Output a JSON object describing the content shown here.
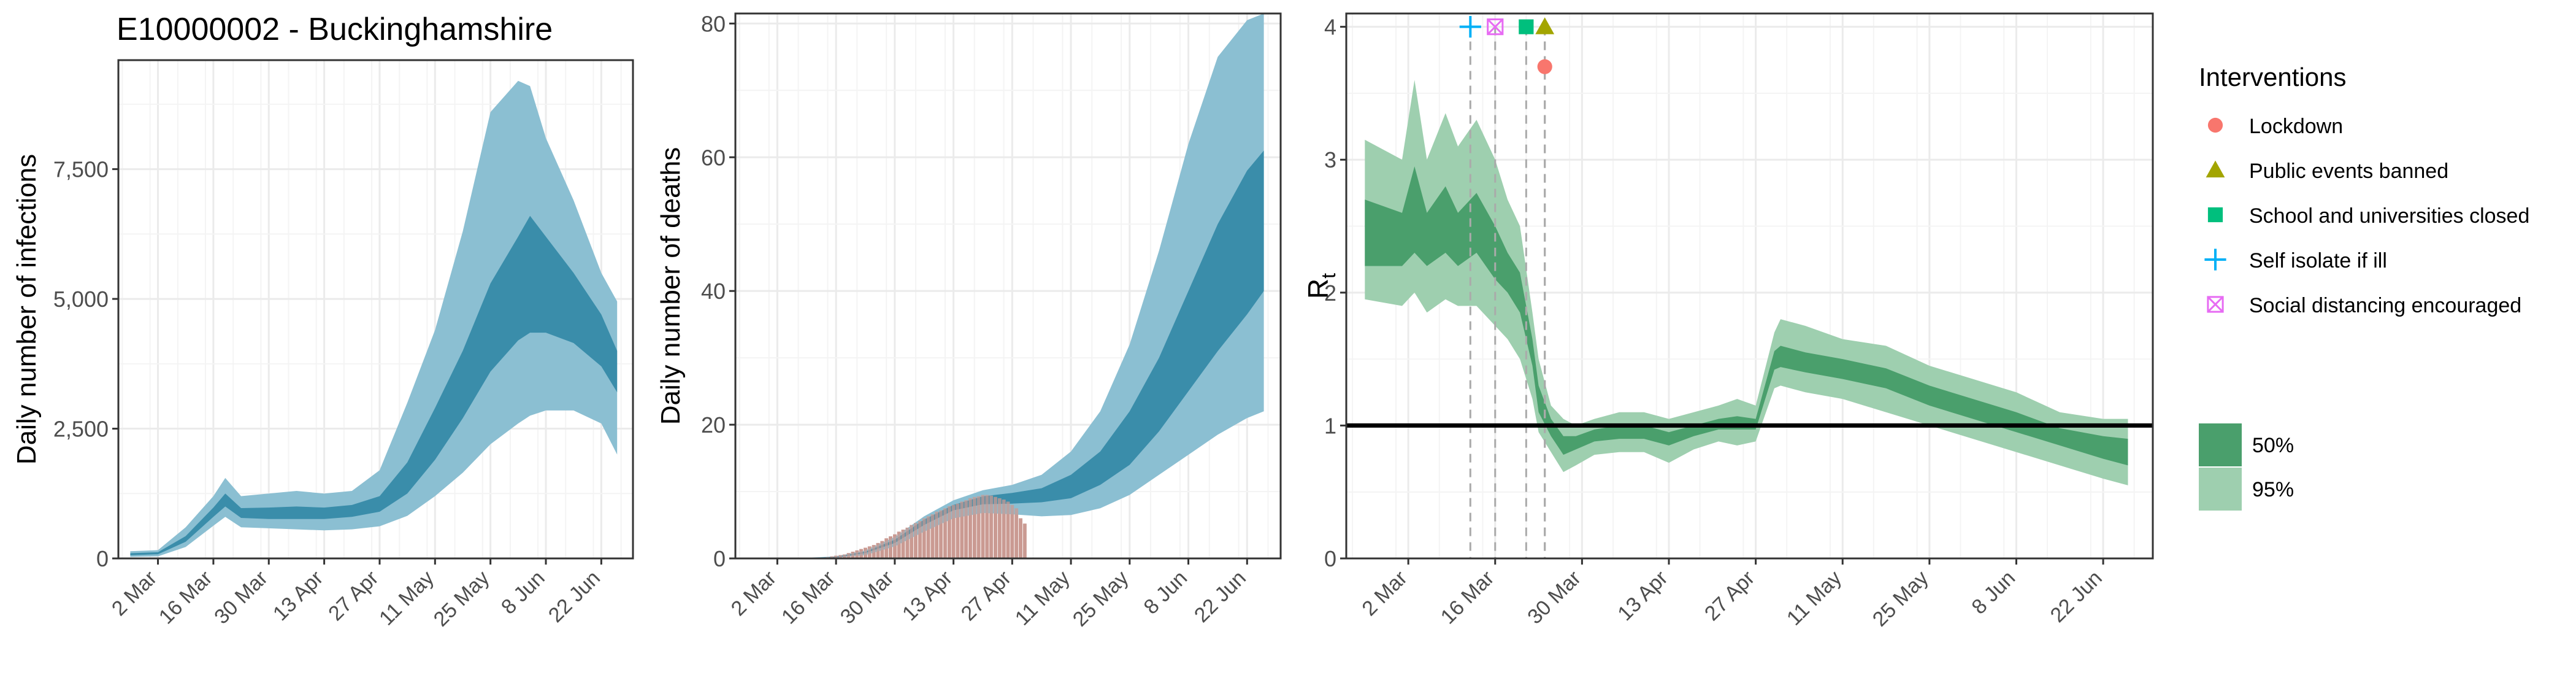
{
  "colors": {
    "band95_blue": "#8bbfd2",
    "band50_blue": "#3a8daa",
    "bars": "#c99a92",
    "band95_green": "#9ecfaf",
    "band50_green": "#4a9f6c",
    "lockdown": "#F8766D",
    "public_events": "#A3A500",
    "school": "#00BF7D",
    "self_isolate": "#00B0F6",
    "social_distancing": "#E76BF3",
    "grid": "#ebebeb",
    "panel_border": "#333333"
  },
  "chart_data": [
    {
      "type": "area",
      "title": "E10000002 - Buckinghamshire",
      "xlabel": "",
      "ylabel": "Daily number of infections",
      "x_ticks": [
        "2 Mar",
        "16 Mar",
        "30 Mar",
        "13 Apr",
        "27 Apr",
        "11 May",
        "25 May",
        "8 Jun",
        "22 Jun"
      ],
      "y_ticks": [
        "0",
        "2,500",
        "5,000",
        "7,500"
      ],
      "ylim": [
        0,
        9600
      ],
      "grid": true,
      "series": [
        {
          "band": "95%",
          "x": [
            "2020-02-24",
            "2020-03-02",
            "2020-03-09",
            "2020-03-16",
            "2020-03-19",
            "2020-03-23",
            "2020-03-30",
            "2020-04-06",
            "2020-04-13",
            "2020-04-20",
            "2020-04-27",
            "2020-05-04",
            "2020-05-11",
            "2020-05-18",
            "2020-05-25",
            "2020-06-01",
            "2020-06-04",
            "2020-06-08",
            "2020-06-15",
            "2020-06-22",
            "2020-06-26"
          ],
          "low": [
            30,
            40,
            220,
            630,
            800,
            600,
            580,
            560,
            540,
            560,
            620,
            820,
            1200,
            1650,
            2200,
            2600,
            2750,
            2850,
            2850,
            2600,
            2000
          ],
          "high": [
            140,
            160,
            600,
            1200,
            1550,
            1200,
            1250,
            1300,
            1250,
            1300,
            1700,
            3000,
            4400,
            6300,
            8600,
            9200,
            9100,
            8100,
            6900,
            5500,
            4950
          ]
        },
        {
          "band": "50%",
          "x": [
            "2020-02-24",
            "2020-03-02",
            "2020-03-09",
            "2020-03-16",
            "2020-03-19",
            "2020-03-23",
            "2020-03-30",
            "2020-04-06",
            "2020-04-13",
            "2020-04-20",
            "2020-04-27",
            "2020-05-04",
            "2020-05-11",
            "2020-05-18",
            "2020-05-25",
            "2020-06-01",
            "2020-06-04",
            "2020-06-08",
            "2020-06-15",
            "2020-06-22",
            "2020-06-26"
          ],
          "low": [
            60,
            80,
            320,
            800,
            1000,
            780,
            760,
            760,
            760,
            800,
            900,
            1250,
            1900,
            2700,
            3600,
            4200,
            4350,
            4350,
            4150,
            3700,
            3200
          ],
          "high": [
            100,
            120,
            430,
            980,
            1250,
            970,
            980,
            1000,
            980,
            1030,
            1200,
            1850,
            2900,
            4000,
            5300,
            6200,
            6600,
            6200,
            5500,
            4700,
            4000
          ]
        }
      ]
    },
    {
      "type": "bar",
      "title": "",
      "xlabel": "",
      "ylabel": "Daily number of deaths",
      "x_ticks": [
        "2 Mar",
        "16 Mar",
        "30 Mar",
        "13 Apr",
        "27 Apr",
        "11 May",
        "25 May",
        "8 Jun",
        "22 Jun"
      ],
      "y_ticks": [
        "0",
        "20",
        "40",
        "60",
        "80"
      ],
      "ylim": [
        0,
        81.5
      ],
      "grid": true,
      "bar_x": [
        "2020-03-14",
        "2020-03-15",
        "2020-03-16",
        "2020-03-17",
        "2020-03-18",
        "2020-03-19",
        "2020-03-20",
        "2020-03-21",
        "2020-03-22",
        "2020-03-23",
        "2020-03-24",
        "2020-03-25",
        "2020-03-26",
        "2020-03-27",
        "2020-03-28",
        "2020-03-29",
        "2020-03-30",
        "2020-03-31",
        "2020-04-01",
        "2020-04-02",
        "2020-04-03",
        "2020-04-04",
        "2020-04-05",
        "2020-04-06",
        "2020-04-07",
        "2020-04-08",
        "2020-04-09",
        "2020-04-10",
        "2020-04-11",
        "2020-04-12",
        "2020-04-13",
        "2020-04-14",
        "2020-04-15",
        "2020-04-16",
        "2020-04-17",
        "2020-04-18",
        "2020-04-19",
        "2020-04-20",
        "2020-04-21",
        "2020-04-22",
        "2020-04-23",
        "2020-04-24",
        "2020-04-25",
        "2020-04-26",
        "2020-04-27",
        "2020-04-28",
        "2020-04-29",
        "2020-04-30"
      ],
      "bar_values": [
        0.2,
        0.3,
        0.4,
        0.5,
        0.6,
        0.8,
        1,
        1.2,
        1.4,
        1.6,
        1.8,
        2,
        2.3,
        2.6,
        3,
        3.3,
        3.6,
        4,
        4.3,
        4.6,
        5,
        5.3,
        5.6,
        6,
        6.3,
        6.6,
        7,
        7.2,
        7.5,
        7.8,
        8,
        8.2,
        8.5,
        8.7,
        9,
        9.2,
        9.3,
        9.5,
        9.5,
        9.4,
        9.2,
        9,
        8.8,
        8.5,
        8,
        7.5,
        6,
        5.2
      ],
      "series": [
        {
          "band": "95%",
          "x": [
            "2020-03-02",
            "2020-03-09",
            "2020-03-16",
            "2020-03-23",
            "2020-03-30",
            "2020-04-06",
            "2020-04-13",
            "2020-04-20",
            "2020-04-27",
            "2020-05-04",
            "2020-05-11",
            "2020-05-18",
            "2020-05-25",
            "2020-06-01",
            "2020-06-08",
            "2020-06-15",
            "2020-06-22",
            "2020-06-26"
          ],
          "low": [
            0,
            0,
            0.1,
            0.5,
            1.8,
            4,
            6,
            6.8,
            6.6,
            6.3,
            6.5,
            7.5,
            9.5,
            12.5,
            15.5,
            18.5,
            21,
            22
          ],
          "high": [
            0,
            0.1,
            0.3,
            1.2,
            3.2,
            6.3,
            8.7,
            10.2,
            11,
            12.5,
            16,
            22,
            32,
            46,
            62,
            75,
            80.5,
            81.5
          ]
        },
        {
          "band": "50%",
          "x": [
            "2020-03-02",
            "2020-03-09",
            "2020-03-16",
            "2020-03-23",
            "2020-03-30",
            "2020-04-06",
            "2020-04-13",
            "2020-04-20",
            "2020-04-27",
            "2020-05-04",
            "2020-05-11",
            "2020-05-18",
            "2020-05-25",
            "2020-06-01",
            "2020-06-08",
            "2020-06-15",
            "2020-06-22",
            "2020-06-26"
          ],
          "low": [
            0,
            0,
            0.15,
            0.8,
            2.3,
            5,
            7.2,
            8.1,
            8.2,
            8.4,
            9,
            11,
            14,
            19,
            25,
            31,
            36.5,
            40
          ],
          "high": [
            0,
            0.05,
            0.25,
            1,
            2.8,
            5.8,
            8,
            9.3,
            9.8,
            10.5,
            12.5,
            16,
            22,
            30,
            40,
            50,
            58,
            61
          ]
        }
      ]
    },
    {
      "type": "area",
      "title": "",
      "xlabel": "",
      "ylabel": "R",
      "ylabel_subscript": "t",
      "x_ticks": [
        "2 Mar",
        "16 Mar",
        "30 Mar",
        "13 Apr",
        "27 Apr",
        "11 May",
        "25 May",
        "8 Jun",
        "22 Jun"
      ],
      "y_ticks": [
        "0",
        "1",
        "2",
        "3",
        "4"
      ],
      "ylim": [
        0,
        4.1
      ],
      "grid": true,
      "reference_line": 1,
      "series": [
        {
          "band": "95%",
          "x": [
            "2020-02-24",
            "2020-03-01",
            "2020-03-03",
            "2020-03-05",
            "2020-03-08",
            "2020-03-10",
            "2020-03-13",
            "2020-03-16",
            "2020-03-18",
            "2020-03-20",
            "2020-03-22",
            "2020-03-23",
            "2020-03-25",
            "2020-03-27",
            "2020-03-29",
            "2020-04-01",
            "2020-04-05",
            "2020-04-09",
            "2020-04-13",
            "2020-04-17",
            "2020-04-21",
            "2020-04-24",
            "2020-04-27",
            "2020-04-30",
            "2020-05-01",
            "2020-05-05",
            "2020-05-11",
            "2020-05-18",
            "2020-05-25",
            "2020-06-01",
            "2020-06-08",
            "2020-06-15",
            "2020-06-22",
            "2020-06-26"
          ],
          "low": [
            1.95,
            1.9,
            2.0,
            1.85,
            1.95,
            1.9,
            1.9,
            1.75,
            1.65,
            1.5,
            1.2,
            0.95,
            0.8,
            0.65,
            0.7,
            0.78,
            0.8,
            0.8,
            0.72,
            0.82,
            0.88,
            0.85,
            0.88,
            1.28,
            1.3,
            1.25,
            1.2,
            1.1,
            1.0,
            0.9,
            0.8,
            0.7,
            0.6,
            0.55
          ],
          "high": [
            3.15,
            3.0,
            3.6,
            3.0,
            3.35,
            3.1,
            3.3,
            3.0,
            2.7,
            2.5,
            1.85,
            1.5,
            1.15,
            1.05,
            1.0,
            1.05,
            1.1,
            1.1,
            1.05,
            1.1,
            1.15,
            1.2,
            1.15,
            1.7,
            1.8,
            1.75,
            1.65,
            1.6,
            1.45,
            1.35,
            1.25,
            1.1,
            1.05,
            1.05
          ]
        },
        {
          "band": "50%",
          "x": [
            "2020-02-24",
            "2020-03-01",
            "2020-03-03",
            "2020-03-05",
            "2020-03-08",
            "2020-03-10",
            "2020-03-13",
            "2020-03-16",
            "2020-03-18",
            "2020-03-20",
            "2020-03-22",
            "2020-03-23",
            "2020-03-25",
            "2020-03-27",
            "2020-03-29",
            "2020-04-01",
            "2020-04-05",
            "2020-04-09",
            "2020-04-13",
            "2020-04-17",
            "2020-04-21",
            "2020-04-24",
            "2020-04-27",
            "2020-04-30",
            "2020-05-01",
            "2020-05-05",
            "2020-05-11",
            "2020-05-18",
            "2020-05-25",
            "2020-06-01",
            "2020-06-08",
            "2020-06-15",
            "2020-06-22",
            "2020-06-26"
          ],
          "low": [
            2.2,
            2.2,
            2.3,
            2.2,
            2.3,
            2.2,
            2.3,
            2.1,
            2.0,
            1.85,
            1.45,
            1.1,
            0.92,
            0.78,
            0.82,
            0.88,
            0.9,
            0.9,
            0.85,
            0.92,
            0.97,
            0.97,
            0.97,
            1.42,
            1.44,
            1.4,
            1.35,
            1.28,
            1.15,
            1.05,
            0.95,
            0.85,
            0.75,
            0.7
          ],
          "high": [
            2.7,
            2.6,
            2.95,
            2.6,
            2.8,
            2.6,
            2.75,
            2.5,
            2.3,
            2.15,
            1.65,
            1.3,
            1.05,
            0.92,
            0.92,
            0.97,
            1.0,
            1.0,
            0.95,
            1.0,
            1.05,
            1.07,
            1.05,
            1.56,
            1.6,
            1.55,
            1.5,
            1.43,
            1.3,
            1.2,
            1.1,
            0.98,
            0.92,
            0.9
          ]
        }
      ],
      "interventions": [
        {
          "label": "Self isolate if ill",
          "date": "2020-03-12",
          "symbol": "plus",
          "color_key": "self_isolate"
        },
        {
          "label": "Social distancing encouraged",
          "date": "2020-03-16",
          "symbol": "boxx",
          "color_key": "social_distancing"
        },
        {
          "label": "School and universities closed",
          "date": "2020-03-21",
          "symbol": "square",
          "color_key": "school"
        },
        {
          "label": "Public events banned",
          "date": "2020-03-24",
          "symbol": "triangle",
          "color_key": "public_events"
        },
        {
          "label": "Lockdown",
          "date": "2020-03-24",
          "symbol": "circle",
          "color_key": "lockdown"
        }
      ]
    }
  ],
  "legend": {
    "interventions_title": "Interventions",
    "interventions": [
      {
        "label": "Lockdown",
        "symbol": "circle",
        "color_key": "lockdown"
      },
      {
        "label": "Public events banned",
        "symbol": "triangle",
        "color_key": "public_events"
      },
      {
        "label": "School and universities closed",
        "symbol": "square",
        "color_key": "school"
      },
      {
        "label": "Self isolate if ill",
        "symbol": "plus",
        "color_key": "self_isolate"
      },
      {
        "label": "Social distancing encouraged",
        "symbol": "boxx",
        "color_key": "social_distancing"
      }
    ],
    "bands": [
      {
        "label": "50%",
        "color_key": "band50_green"
      },
      {
        "label": "95%",
        "color_key": "band95_green"
      }
    ]
  }
}
